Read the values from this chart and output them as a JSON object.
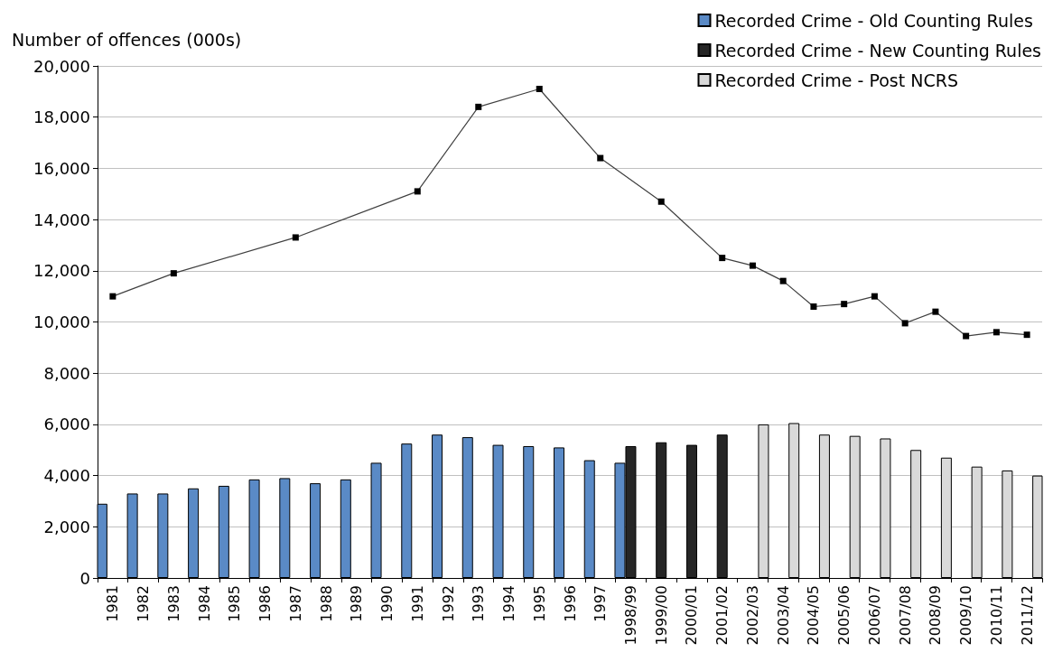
{
  "chart_data": {
    "type": "bar",
    "ylabel": "Number of offences (000s)",
    "categories": [
      "1981",
      "1982",
      "1983",
      "1984",
      "1985",
      "1986",
      "1987",
      "1988",
      "1989",
      "1990",
      "1991",
      "1992",
      "1993",
      "1994",
      "1995",
      "1996",
      "1997",
      "1998/99",
      "1999/00",
      "2000/01",
      "2001/02",
      "2002/03",
      "2003/04",
      "2004/05",
      "2005/06",
      "2006/07",
      "2007/08",
      "2008/09",
      "2009/10",
      "2010/11",
      "2011/12"
    ],
    "series": [
      {
        "name": "Recorded Crime - Old Counting Rules",
        "color": "#5a8ac6",
        "values": [
          2900,
          3300,
          3300,
          3500,
          3600,
          3850,
          3900,
          3700,
          3850,
          4500,
          5250,
          5600,
          5500,
          5200,
          5150,
          5100,
          4600,
          4500,
          null,
          null,
          null,
          null,
          null,
          null,
          null,
          null,
          null,
          null,
          null,
          null,
          null
        ]
      },
      {
        "name": "Recorded Crime - New Counting Rules",
        "color": "#262626",
        "values": [
          null,
          null,
          null,
          null,
          null,
          null,
          null,
          null,
          null,
          null,
          null,
          null,
          null,
          null,
          null,
          null,
          null,
          5150,
          5300,
          5200,
          5600,
          null,
          null,
          null,
          null,
          null,
          null,
          null,
          null,
          null,
          null
        ]
      },
      {
        "name": "Recorded Crime - Post NCRS",
        "color": "#d9d9d9",
        "values": [
          null,
          null,
          null,
          null,
          null,
          null,
          null,
          null,
          null,
          null,
          null,
          null,
          null,
          null,
          null,
          null,
          null,
          null,
          null,
          null,
          null,
          6000,
          6050,
          5600,
          5550,
          5450,
          5000,
          4700,
          4350,
          4200,
          4000
        ]
      },
      {
        "type": "line",
        "color": "#404040",
        "marker": "square",
        "values": [
          11000,
          null,
          11900,
          null,
          null,
          null,
          13300,
          null,
          null,
          null,
          15100,
          null,
          18400,
          null,
          19100,
          null,
          16400,
          null,
          14700,
          null,
          12500,
          12200,
          11600,
          10600,
          10700,
          11000,
          9950,
          10400,
          9450,
          9600,
          9500
        ]
      }
    ],
    "ylim": [
      0,
      20000
    ],
    "yticks": [
      0,
      {
        "value": 2000,
        "label": "2,000"
      },
      {
        "value": 4000,
        "label": "4,000"
      },
      {
        "value": 6000,
        "label": "6,000"
      },
      {
        "value": 8000,
        "label": "8,000"
      },
      {
        "value": 10000,
        "label": "10,000"
      },
      {
        "value": 12000,
        "label": "12,000"
      },
      {
        "value": 14000,
        "label": "14,000"
      },
      {
        "value": 16000,
        "label": "16,000"
      },
      {
        "value": 18000,
        "label": "18,000"
      },
      {
        "value": 20000,
        "label": "20,000"
      }
    ],
    "grid": "y",
    "legend": "top right"
  }
}
